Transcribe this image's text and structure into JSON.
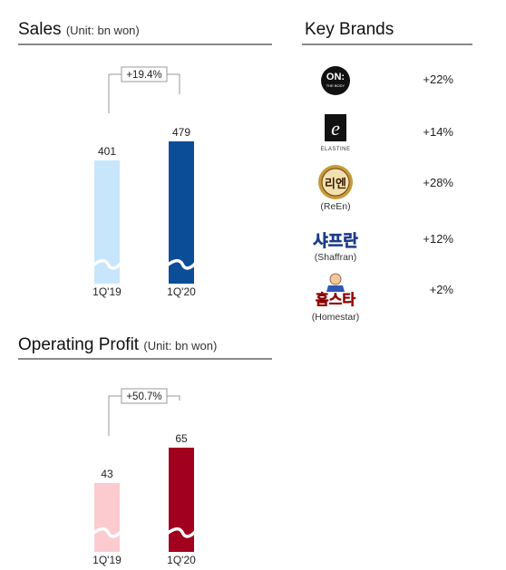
{
  "sales": {
    "title": "Sales",
    "unit": "(Unit: bn won)",
    "growth": "+19.4%"
  },
  "operating_profit": {
    "title": "Operating Profit",
    "unit": "(Unit: bn won)",
    "growth": "+50.7%"
  },
  "key_brands": {
    "title": "Key Brands",
    "items": [
      {
        "name": "ON: THE BODY",
        "logo_text": "ON:",
        "caption": "",
        "change": "+22%",
        "icon": "on-the-body-logo"
      },
      {
        "name": "ELASTINE",
        "logo_text": "ELASTINE",
        "caption": "",
        "change": "+14%",
        "icon": "elastine-logo"
      },
      {
        "name": "ReEn",
        "logo_text": "리엔",
        "caption": "(ReEn)",
        "change": "+28%",
        "icon": "reen-logo"
      },
      {
        "name": "Shaffran",
        "logo_text": "샤프란",
        "caption": "(Shaffran)",
        "change": "+12%",
        "icon": "shaffran-logo"
      },
      {
        "name": "Homestar",
        "logo_text": "홈스타",
        "caption": "(Homestar)",
        "change": "+2%",
        "icon": "homestar-logo"
      }
    ]
  },
  "chart_data": [
    {
      "type": "bar",
      "title": "Sales",
      "unit": "(Unit: bn won)",
      "categories": [
        "1Q'19",
        "1Q'20"
      ],
      "values": [
        401,
        479
      ],
      "data_labels": [
        "401",
        "479"
      ],
      "colors": [
        "#c7e6fb",
        "#0b4d96"
      ],
      "axis_break": true,
      "annotation": "+19.4%"
    },
    {
      "type": "bar",
      "title": "Operating Profit",
      "unit": "(Unit: bn won)",
      "categories": [
        "1Q'19",
        "1Q'20"
      ],
      "values": [
        43,
        65
      ],
      "data_labels": [
        "43",
        "65"
      ],
      "colors": [
        "#fbcbcf",
        "#a1001e"
      ],
      "axis_break": true,
      "annotation": "+50.7%"
    }
  ]
}
